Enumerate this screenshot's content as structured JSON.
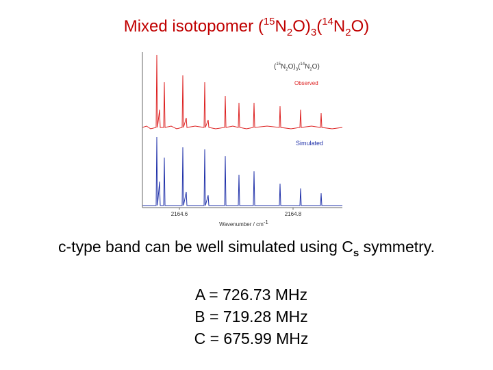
{
  "title": {
    "parts": [
      "Mixed isotopomer (",
      "15",
      "N",
      "2",
      "O)",
      "3",
      "(",
      "14",
      "N",
      "2",
      "O)"
    ]
  },
  "figure": {
    "legend_parts": [
      "(",
      "15",
      "N",
      "2",
      "O)",
      "3",
      "(",
      "14",
      "N",
      "2",
      "O)"
    ],
    "observed": "Observed",
    "simulated": "Simulated",
    "x_tick_labels": [
      "2164.6",
      "2164.8"
    ],
    "x_label_parts": [
      "Wavenumber / cm",
      "-1"
    ]
  },
  "body": {
    "parts": [
      "c-type band can be well simulated using C",
      "s",
      " symmetry."
    ]
  },
  "constants": [
    "A = 726.73 MHz",
    "B = 719.28 MHz",
    "C = 675.99 MHz"
  ]
}
